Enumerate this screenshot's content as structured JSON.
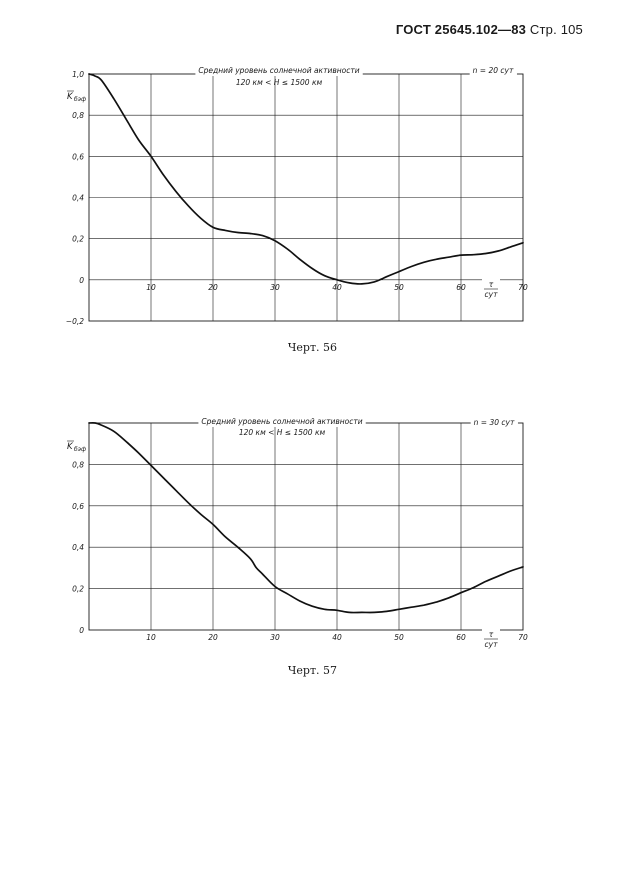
{
  "header": {
    "doc": "ГОСТ 25645.102—83",
    "page": "Стр. 105"
  },
  "chart_data": [
    {
      "type": "line",
      "annotation1": "Средний уровень солнечной активности",
      "annotation2": "120 км < H ≤ 1500 км",
      "n_label": "n = 20 сут",
      "ylabel": "K",
      "ylabel_sub": "бэф",
      "xlabel_num": "τ",
      "xlabel_den": "сут",
      "caption": "Черт. 56",
      "xlim": [
        0,
        70
      ],
      "ylim": [
        -0.2,
        1.0
      ],
      "xticks": [
        10,
        20,
        30,
        40,
        50,
        60,
        70
      ],
      "yticks": [
        -0.2,
        0,
        0.2,
        0.4,
        0.6,
        0.8,
        1.0
      ],
      "ytick_labels": [
        "−0,2",
        "0",
        "0,2",
        "0,4",
        "0,6",
        "0,8",
        "1,0"
      ],
      "x": [
        0,
        1,
        2,
        4,
        6,
        8,
        10,
        12,
        14,
        16,
        18,
        20,
        22,
        24,
        26,
        28,
        30,
        32,
        34,
        36,
        38,
        40,
        42,
        44,
        46,
        48,
        50,
        52,
        54,
        56,
        58,
        60,
        62,
        64,
        66,
        68,
        70
      ],
      "y": [
        1.0,
        0.99,
        0.97,
        0.88,
        0.78,
        0.68,
        0.6,
        0.51,
        0.43,
        0.36,
        0.3,
        0.255,
        0.24,
        0.23,
        0.225,
        0.215,
        0.19,
        0.15,
        0.1,
        0.055,
        0.02,
        0.0,
        -0.015,
        -0.02,
        -0.01,
        0.015,
        0.04,
        0.065,
        0.085,
        0.1,
        0.11,
        0.12,
        0.122,
        0.128,
        0.14,
        0.16,
        0.18
      ]
    },
    {
      "type": "line",
      "annotation1": "Средний уровень солнечной активности",
      "annotation2": "120 км < H ≤ 1500 км",
      "n_label": "n = 30 сут",
      "ylabel": "K",
      "ylabel_sub": "бэф",
      "xlabel_num": "τ",
      "xlabel_den": "сут",
      "caption": "Черт. 57",
      "xlim": [
        0,
        70
      ],
      "ylim": [
        0,
        1.0
      ],
      "xticks": [
        10,
        20,
        30,
        40,
        50,
        60,
        70
      ],
      "yticks": [
        0,
        0.2,
        0.4,
        0.6,
        0.8
      ],
      "ytick_labels": [
        "0",
        "0,2",
        "0,4",
        "0,6",
        "0,8"
      ],
      "x": [
        0,
        1,
        2,
        4,
        6,
        8,
        10,
        12,
        14,
        16,
        18,
        20,
        22,
        24,
        26,
        27,
        28,
        30,
        32,
        34,
        36,
        38,
        40,
        42,
        44,
        46,
        48,
        50,
        52,
        54,
        56,
        58,
        60,
        62,
        64,
        66,
        68,
        70
      ],
      "y": [
        1.0,
        1.0,
        0.99,
        0.96,
        0.91,
        0.855,
        0.795,
        0.735,
        0.675,
        0.615,
        0.56,
        0.51,
        0.45,
        0.4,
        0.345,
        0.3,
        0.27,
        0.21,
        0.175,
        0.14,
        0.115,
        0.1,
        0.095,
        0.085,
        0.085,
        0.085,
        0.09,
        0.1,
        0.11,
        0.12,
        0.135,
        0.155,
        0.18,
        0.205,
        0.235,
        0.26,
        0.285,
        0.305
      ]
    }
  ]
}
